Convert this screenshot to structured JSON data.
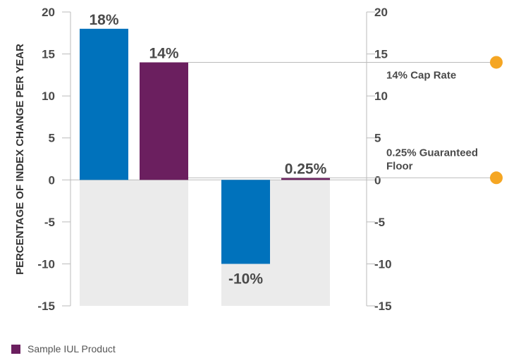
{
  "chart_data": {
    "type": "bar",
    "ylabel": "PERCENTAGE OF INDEX CHANGE PER YEAR",
    "ylim": [
      -15,
      20
    ],
    "yticks": [
      20,
      15,
      10,
      5,
      0,
      -5,
      -10,
      -15
    ],
    "grid": false,
    "legend_position": "bottom-left",
    "groups": [
      {
        "shaded_range": [
          -15,
          0
        ],
        "bars": [
          {
            "series": "index",
            "value": 18,
            "label": "18%"
          },
          {
            "series": "iul",
            "value": 14,
            "label": "14%"
          }
        ]
      },
      {
        "shaded_range": [
          -15,
          0
        ],
        "bars": [
          {
            "series": "index",
            "value": -10,
            "label": "-10%"
          },
          {
            "series": "iul",
            "value": 0.25,
            "label": "0.25%"
          }
        ]
      }
    ],
    "series": [
      {
        "id": "index",
        "name": "",
        "color": "#0072bc"
      },
      {
        "id": "iul",
        "name": "Sample IUL Product",
        "color": "#6b1f5f"
      }
    ],
    "reference_lines": [
      {
        "value": 14,
        "label": "14% Cap Rate",
        "color": "#f5a623"
      },
      {
        "value": 0.25,
        "label": "0.25% Guaranteed Floor",
        "label_lines": [
          "0.25% Guaranteed",
          "Floor"
        ],
        "color": "#f5a623"
      }
    ],
    "shade_color": "#ebebeb",
    "axis_color": "#bbbbbb"
  },
  "legend": {
    "items": [
      {
        "label": "Sample IUL Product",
        "color": "#6b1f5f"
      }
    ]
  }
}
